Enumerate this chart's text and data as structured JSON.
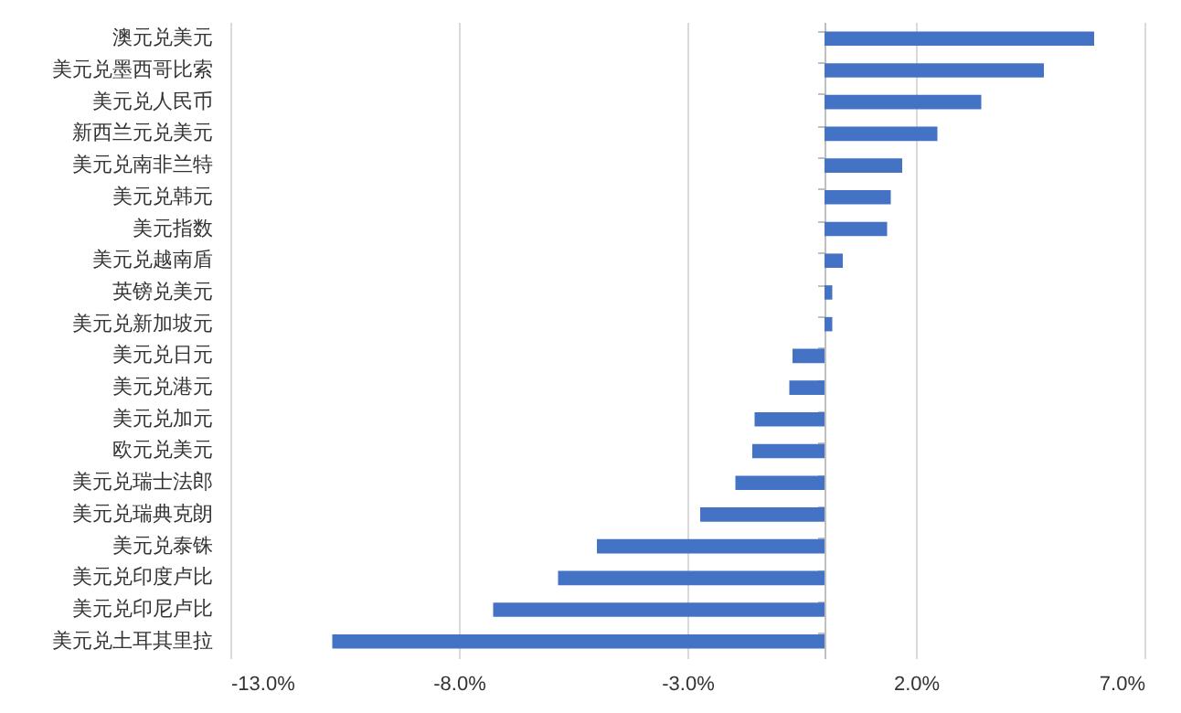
{
  "chart_data": {
    "type": "bar",
    "orientation": "horizontal",
    "categories": [
      "澳元兑美元",
      "美元兑墨西哥比索",
      "美元兑人民币",
      "新西兰元兑美元",
      "美元兑南非兰特",
      "美元兑韩元",
      "美元指数",
      "美元兑越南盾",
      "英镑兑美元",
      "美元兑新加坡元",
      "美元兑日元",
      "美元兑港元",
      "美元兑加元",
      "欧元兑美元",
      "美元兑瑞士法郎",
      "美元兑瑞典克朗",
      "美元兑泰铢",
      "美元兑印度卢比",
      "美元兑印尼卢比",
      "美元兑土耳其里拉"
    ],
    "values": [
      5.9,
      4.8,
      3.43,
      2.47,
      1.7,
      1.45,
      1.37,
      0.4,
      0.17,
      0.17,
      -0.7,
      -0.77,
      -1.53,
      -1.58,
      -1.95,
      -2.72,
      -4.98,
      -5.83,
      -7.25,
      -10.77
    ],
    "color": "#4472c4",
    "xlim": [
      -13,
      7
    ],
    "xticks": [
      {
        "value": -13,
        "label": "-13.0%"
      },
      {
        "value": -8,
        "label": "-8.0%"
      },
      {
        "value": -3,
        "label": "-3.0%"
      },
      {
        "value": 2,
        "label": "2.0%"
      },
      {
        "value": 7,
        "label": "7.0%"
      }
    ],
    "grid": "x"
  }
}
